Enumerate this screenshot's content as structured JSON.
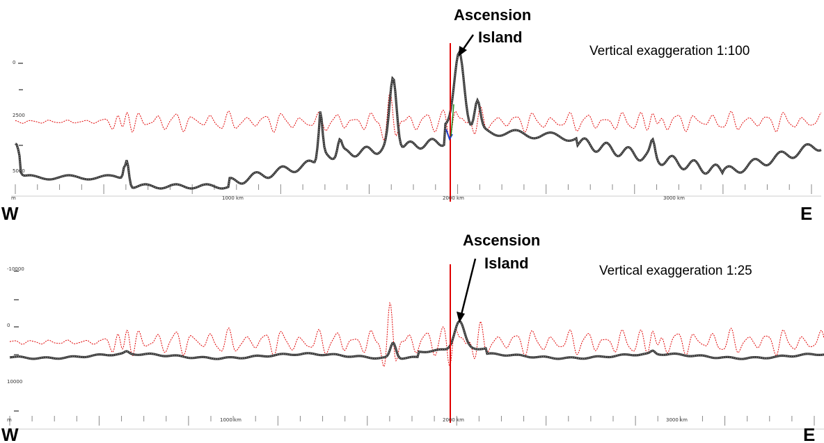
{
  "chart_data": [
    {
      "type": "line",
      "series": [],
      "x_unit": "km",
      "xlim": [
        0,
        3700
      ],
      "x_tick_labels": [
        {
          "x": 0,
          "label": "m"
        },
        {
          "x": 1000,
          "label": "1000 km"
        },
        {
          "x": 2000,
          "label": "2000 km"
        },
        {
          "x": 3000,
          "label": "3000 km"
        }
      ],
      "y_tick_labels": [
        "0",
        "2500",
        "5000"
      ],
      "west_label": "W",
      "east_label": "E",
      "annotation": {
        "line1": "Ascension",
        "line2": "Island",
        "x": 2030
      },
      "exaggeration_label": "Vertical exaggeration 1:100",
      "marker_x": 2000,
      "colors": {
        "profile": "#333333",
        "signal": "#e00000",
        "marker": "#e00000"
      }
    },
    {
      "type": "line",
      "series": [],
      "x_unit": "km",
      "xlim": [
        0,
        3700
      ],
      "x_tick_labels": [
        {
          "x": 0,
          "label": "m"
        },
        {
          "x": 1000,
          "label": "1000 km"
        },
        {
          "x": 2000,
          "label": "2000 km"
        },
        {
          "x": 3000,
          "label": "3000 km"
        }
      ],
      "y_tick_labels": [
        "-10000",
        "0",
        "10000"
      ],
      "west_label": "W",
      "east_label": "E",
      "annotation": {
        "line1": "Ascension",
        "line2": "Island",
        "x": 2030
      },
      "exaggeration_label": "Vertical exaggeration 1:25",
      "marker_x": 2000,
      "colors": {
        "profile": "#333333",
        "signal": "#e00000",
        "marker": "#e00000"
      }
    }
  ]
}
